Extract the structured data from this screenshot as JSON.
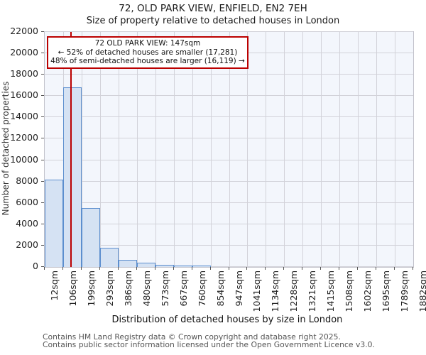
{
  "title": "72, OLD PARK VIEW, ENFIELD, EN2 7EH",
  "subtitle": "Size of property relative to detached houses in London",
  "annotation": {
    "line1": "72 OLD PARK VIEW: 147sqm",
    "line2": "← 52% of detached houses are smaller (17,281)",
    "line3": "48% of semi-detached houses are larger (16,119) →"
  },
  "chart_data": {
    "type": "bar",
    "title": "72, OLD PARK VIEW, ENFIELD, EN2 7EH",
    "subtitle": "Size of property relative to detached houses in London",
    "xlabel": "Distribution of detached houses by size in London",
    "ylabel": "Number of detached properties",
    "x_tick_labels": [
      "12sqm",
      "106sqm",
      "199sqm",
      "293sqm",
      "386sqm",
      "480sqm",
      "573sqm",
      "667sqm",
      "760sqm",
      "854sqm",
      "947sqm",
      "1041sqm",
      "1134sqm",
      "1228sqm",
      "1321sqm",
      "1415sqm",
      "1508sqm",
      "1602sqm",
      "1695sqm",
      "1789sqm",
      "1882sqm"
    ],
    "bin_edges_sqm": [
      12,
      106,
      199,
      293,
      386,
      480,
      573,
      667,
      760,
      854,
      947,
      1041,
      1134,
      1228,
      1321,
      1415,
      1508,
      1602,
      1695,
      1789,
      1882
    ],
    "values": [
      8200,
      16800,
      5500,
      1800,
      650,
      400,
      220,
      150,
      130,
      0,
      0,
      0,
      0,
      0,
      0,
      0,
      0,
      0,
      0,
      0
    ],
    "y_ticks": [
      0,
      2000,
      4000,
      6000,
      8000,
      10000,
      12000,
      14000,
      16000,
      18000,
      20000,
      22000
    ],
    "ylim": [
      0,
      22000
    ],
    "grid": true,
    "marker": {
      "value_sqm": 147,
      "color": "#bb0000"
    },
    "bar_fill": "#d5e2f3",
    "bar_edge": "#5c8ece",
    "plot_bg": "#f3f6fc",
    "grid_color": "#d2d2d9"
  },
  "footer": {
    "line1": "Contains HM Land Registry data © Crown copyright and database right 2025.",
    "line2": "Contains public sector information licensed under the Open Government Licence v3.0."
  }
}
